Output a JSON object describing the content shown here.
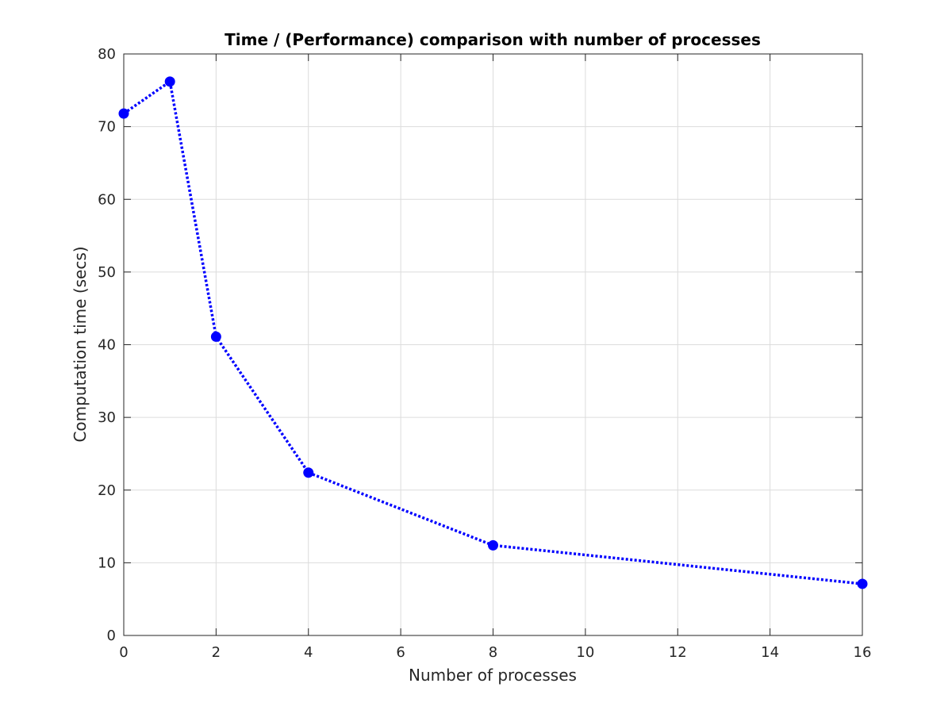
{
  "chart_data": {
    "type": "line",
    "title": "Time / (Performance) comparison with number of processes",
    "xlabel": "Number of processes",
    "ylabel": "Computation time (secs)",
    "xlim": [
      0,
      16
    ],
    "ylim": [
      0,
      80
    ],
    "xticks": [
      0,
      2,
      4,
      6,
      8,
      10,
      12,
      14,
      16
    ],
    "yticks": [
      0,
      10,
      20,
      30,
      40,
      50,
      60,
      70,
      80
    ],
    "grid": true,
    "series": [
      {
        "color": "#0000ff",
        "line_style": "dotted",
        "marker": "circle",
        "x": [
          0,
          1,
          2,
          4,
          8,
          16
        ],
        "y": [
          71.8,
          76.2,
          41.1,
          22.4,
          12.4,
          7.1
        ]
      }
    ]
  }
}
